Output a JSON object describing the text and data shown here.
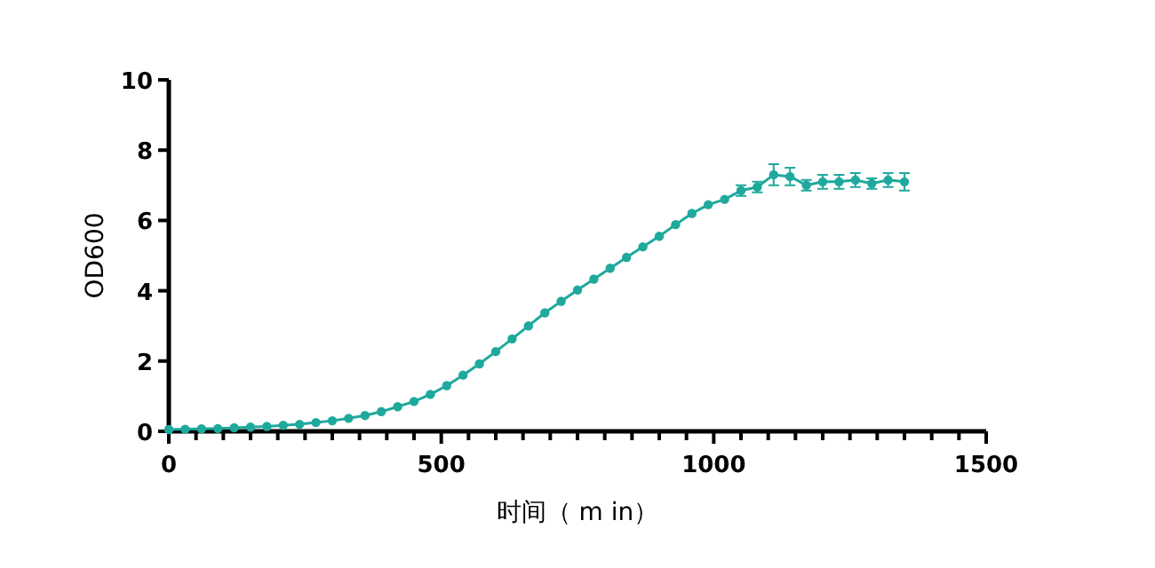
{
  "chart_data": {
    "type": "line",
    "xlabel": "时间（ m in）",
    "ylabel": "OD600",
    "color": "#1fa99d",
    "marker": "circle",
    "line_style": "solid",
    "xlim": [
      0,
      1500
    ],
    "ylim": [
      0,
      10
    ],
    "xticks": [
      0,
      {
        "value": 50,
        "label": null
      },
      {
        "value": 100,
        "label": null
      },
      {
        "value": 150,
        "label": null
      },
      {
        "value": 200,
        "label": null
      },
      {
        "value": 250,
        "label": null
      },
      {
        "value": 300,
        "label": null
      },
      {
        "value": 350,
        "label": null
      },
      {
        "value": 400,
        "label": null
      },
      {
        "value": 450,
        "label": null
      },
      500,
      {
        "value": 550,
        "label": null
      },
      {
        "value": 600,
        "label": null
      },
      {
        "value": 650,
        "label": null
      },
      {
        "value": 700,
        "label": null
      },
      {
        "value": 750,
        "label": null
      },
      {
        "value": 800,
        "label": null
      },
      {
        "value": 850,
        "label": null
      },
      {
        "value": 900,
        "label": null
      },
      {
        "value": 950,
        "label": null
      },
      1000,
      {
        "value": 1050,
        "label": null
      },
      {
        "value": 1100,
        "label": null
      },
      {
        "value": 1150,
        "label": null
      },
      {
        "value": 1200,
        "label": null
      },
      {
        "value": 1250,
        "label": null
      },
      {
        "value": 1300,
        "label": null
      },
      {
        "value": 1350,
        "label": null
      },
      {
        "value": 1400,
        "label": null
      },
      {
        "value": 1450,
        "label": null
      },
      1500
    ],
    "yticks": [
      0,
      2,
      4,
      6,
      8,
      10
    ],
    "x": [
      0,
      30,
      60,
      90,
      120,
      150,
      180,
      210,
      240,
      270,
      300,
      330,
      360,
      390,
      420,
      450,
      480,
      510,
      540,
      570,
      600,
      630,
      660,
      690,
      720,
      750,
      780,
      810,
      840,
      870,
      900,
      930,
      960,
      990,
      1020,
      1050,
      1080,
      1110,
      1140,
      1170,
      1200,
      1230,
      1260,
      1290,
      1320,
      1350
    ],
    "values": [
      0.05,
      0.06,
      0.07,
      0.08,
      0.1,
      0.12,
      0.14,
      0.17,
      0.2,
      0.25,
      0.3,
      0.37,
      0.45,
      0.56,
      0.7,
      0.85,
      1.05,
      1.3,
      1.6,
      1.92,
      2.27,
      2.63,
      3.0,
      3.37,
      3.7,
      4.02,
      4.33,
      4.64,
      4.95,
      5.25,
      5.55,
      5.88,
      6.2,
      6.45,
      6.6,
      6.85,
      6.95,
      7.3,
      7.25,
      7.0,
      7.1,
      7.1,
      7.15,
      7.05,
      7.15,
      7.1
    ],
    "errors": [
      null,
      null,
      null,
      null,
      null,
      null,
      null,
      null,
      null,
      null,
      null,
      null,
      null,
      null,
      null,
      null,
      null,
      null,
      null,
      null,
      null,
      null,
      null,
      null,
      null,
      null,
      null,
      null,
      null,
      null,
      null,
      null,
      null,
      null,
      null,
      0.15,
      0.15,
      0.3,
      0.25,
      0.15,
      0.2,
      0.2,
      0.2,
      0.15,
      0.2,
      0.25
    ]
  }
}
